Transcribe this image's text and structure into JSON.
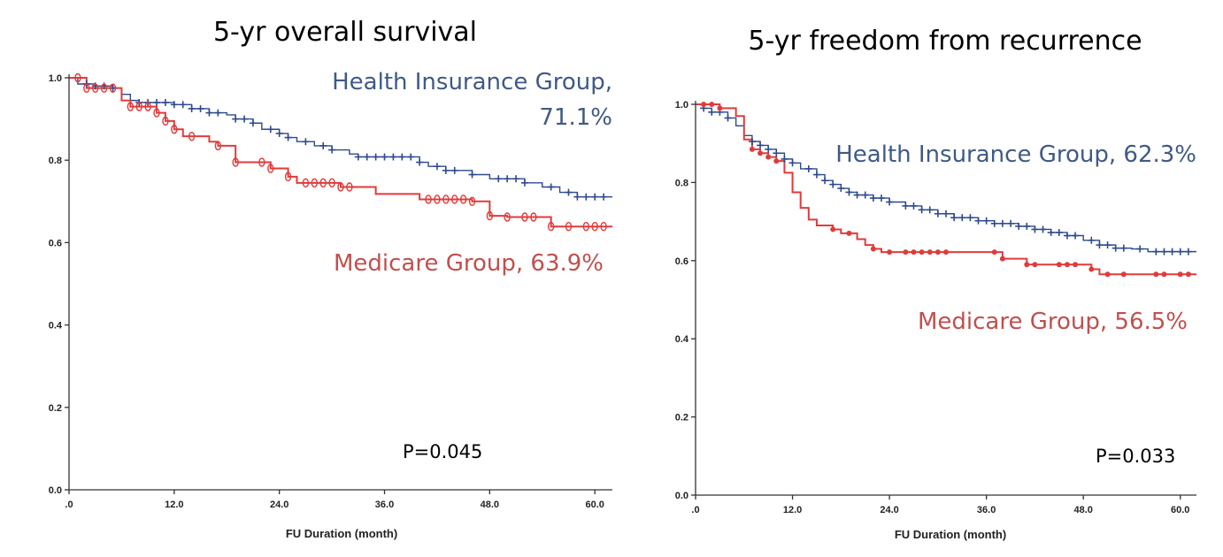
{
  "colors": {
    "health": "#2e4a8c",
    "medicare": "#e03b3b"
  },
  "chart_data": [
    {
      "type": "line",
      "title": "5-yr overall survival",
      "xlabel": "FU Duration (month)",
      "ylabel": "",
      "xlim": [
        0,
        62
      ],
      "ylim": [
        0,
        1.0
      ],
      "x_ticks": [
        0,
        12,
        24,
        36,
        48,
        60
      ],
      "x_tick_labels": [
        ".0",
        "12.0",
        "24.0",
        "36.0",
        "48.0",
        "60.0"
      ],
      "y_ticks": [
        0,
        0.2,
        0.4,
        0.6,
        0.8,
        1.0
      ],
      "y_tick_labels": [
        "0.0",
        "0.2",
        "0.4",
        "0.6",
        "0.8",
        "1.0"
      ],
      "series": [
        {
          "name": "Health Insurance Group, 71.1%",
          "label_lines": [
            "Health Insurance Group,",
            "71.1%"
          ],
          "steps": [
            [
              0,
              1.0
            ],
            [
              1,
              0.985
            ],
            [
              3,
              0.98
            ],
            [
              5,
              0.975
            ],
            [
              6,
              0.96
            ],
            [
              7,
              0.945
            ],
            [
              8,
              0.94
            ],
            [
              12,
              0.935
            ],
            [
              14,
              0.925
            ],
            [
              16,
              0.915
            ],
            [
              18,
              0.91
            ],
            [
              19,
              0.9
            ],
            [
              21,
              0.89
            ],
            [
              22,
              0.875
            ],
            [
              24,
              0.865
            ],
            [
              25,
              0.855
            ],
            [
              26,
              0.845
            ],
            [
              28,
              0.835
            ],
            [
              30,
              0.825
            ],
            [
              32,
              0.815
            ],
            [
              33,
              0.808
            ],
            [
              40,
              0.795
            ],
            [
              41,
              0.785
            ],
            [
              43,
              0.775
            ],
            [
              46,
              0.765
            ],
            [
              48,
              0.755
            ],
            [
              52,
              0.745
            ],
            [
              54,
              0.735
            ],
            [
              56,
              0.722
            ],
            [
              58,
              0.711
            ],
            [
              62,
              0.711
            ]
          ],
          "censors": [
            2,
            3,
            4,
            5,
            8,
            9,
            10,
            11,
            12,
            13,
            14,
            15,
            16,
            17,
            19,
            20,
            21,
            23,
            24,
            25,
            27,
            29,
            30,
            33,
            34,
            35,
            36,
            37,
            38,
            39,
            40,
            42,
            43,
            44,
            46,
            49,
            50,
            51,
            52,
            55,
            57,
            58,
            59,
            60,
            61
          ]
        },
        {
          "name": "Medicare Group, 63.9%",
          "label_lines": [
            "Medicare Group, 63.9%"
          ],
          "steps": [
            [
              0,
              1.0
            ],
            [
              2,
              0.975
            ],
            [
              6,
              0.945
            ],
            [
              7,
              0.93
            ],
            [
              10,
              0.915
            ],
            [
              11,
              0.895
            ],
            [
              12,
              0.875
            ],
            [
              13,
              0.858
            ],
            [
              16,
              0.845
            ],
            [
              17,
              0.835
            ],
            [
              19,
              0.795
            ],
            [
              23,
              0.78
            ],
            [
              25,
              0.76
            ],
            [
              26,
              0.745
            ],
            [
              31,
              0.735
            ],
            [
              35,
              0.718
            ],
            [
              40,
              0.705
            ],
            [
              46,
              0.7
            ],
            [
              48,
              0.665
            ],
            [
              50,
              0.662
            ],
            [
              54,
              0.662
            ],
            [
              55,
              0.639
            ],
            [
              62,
              0.639
            ]
          ],
          "censors": [
            1,
            2,
            3,
            4,
            5,
            7,
            8,
            9,
            10,
            11,
            12,
            14,
            17,
            19,
            22,
            23,
            25,
            27,
            28,
            29,
            30,
            31,
            32,
            41,
            42,
            43,
            44,
            45,
            46,
            48,
            50,
            52,
            53,
            55,
            57,
            59,
            60,
            61
          ]
        }
      ],
      "annotations": [
        "P=0.045"
      ]
    },
    {
      "type": "line",
      "title": "5-yr freedom from recurrence",
      "xlabel": "FU Duration (month)",
      "ylabel": "",
      "xlim": [
        0,
        62
      ],
      "ylim": [
        0,
        1.0
      ],
      "x_ticks": [
        0,
        12,
        24,
        36,
        48,
        60
      ],
      "x_tick_labels": [
        ".0",
        "12.0",
        "24.0",
        "36.0",
        "48.0",
        "60.0"
      ],
      "y_ticks": [
        0,
        0.2,
        0.4,
        0.6,
        0.8,
        1.0
      ],
      "y_tick_labels": [
        "0.0",
        "0.2",
        "0.4",
        "0.6",
        "0.8",
        "1.0"
      ],
      "series": [
        {
          "name": "Health Insurance Group, 62.3%",
          "label_lines": [
            "Health Insurance Group, 62.3%"
          ],
          "steps": [
            [
              0,
              1.0
            ],
            [
              1,
              0.99
            ],
            [
              2,
              0.98
            ],
            [
              4,
              0.965
            ],
            [
              5,
              0.945
            ],
            [
              6,
              0.92
            ],
            [
              7,
              0.905
            ],
            [
              8,
              0.895
            ],
            [
              9,
              0.885
            ],
            [
              10,
              0.875
            ],
            [
              11,
              0.86
            ],
            [
              12,
              0.85
            ],
            [
              13,
              0.835
            ],
            [
              15,
              0.82
            ],
            [
              16,
              0.805
            ],
            [
              17,
              0.795
            ],
            [
              18,
              0.785
            ],
            [
              19,
              0.775
            ],
            [
              20,
              0.768
            ],
            [
              22,
              0.76
            ],
            [
              24,
              0.75
            ],
            [
              26,
              0.74
            ],
            [
              28,
              0.73
            ],
            [
              30,
              0.72
            ],
            [
              32,
              0.71
            ],
            [
              35,
              0.702
            ],
            [
              37,
              0.695
            ],
            [
              40,
              0.688
            ],
            [
              42,
              0.68
            ],
            [
              44,
              0.672
            ],
            [
              46,
              0.664
            ],
            [
              48,
              0.652
            ],
            [
              50,
              0.64
            ],
            [
              52,
              0.632
            ],
            [
              54,
              0.63
            ],
            [
              56,
              0.623
            ],
            [
              62,
              0.623
            ]
          ],
          "censors": [
            1,
            2,
            3,
            4,
            7,
            8,
            9,
            10,
            11,
            12,
            14,
            15,
            16,
            17,
            18,
            19,
            20,
            21,
            22,
            23,
            24,
            26,
            27,
            28,
            29,
            30,
            31,
            32,
            33,
            34,
            35,
            36,
            37,
            38,
            39,
            40,
            41,
            42,
            43,
            44,
            45,
            46,
            47,
            49,
            50,
            51,
            52,
            53,
            55,
            57,
            58,
            59,
            60,
            61
          ]
        },
        {
          "name": "Medicare Group, 56.5%",
          "label_lines": [
            "Medicare Group, 56.5%"
          ],
          "steps": [
            [
              0,
              1.0
            ],
            [
              3,
              0.99
            ],
            [
              5,
              0.97
            ],
            [
              6,
              0.91
            ],
            [
              7,
              0.885
            ],
            [
              8,
              0.875
            ],
            [
              9,
              0.865
            ],
            [
              10,
              0.855
            ],
            [
              11,
              0.825
            ],
            [
              12,
              0.775
            ],
            [
              13,
              0.735
            ],
            [
              14,
              0.705
            ],
            [
              15,
              0.69
            ],
            [
              17,
              0.68
            ],
            [
              18,
              0.67
            ],
            [
              20,
              0.655
            ],
            [
              21,
              0.64
            ],
            [
              22,
              0.63
            ],
            [
              23,
              0.622
            ],
            [
              38,
              0.605
            ],
            [
              41,
              0.59
            ],
            [
              49,
              0.578
            ],
            [
              50,
              0.565
            ],
            [
              62,
              0.565
            ]
          ],
          "censors": [
            1,
            2,
            3,
            7,
            8,
            9,
            10,
            17,
            19,
            22,
            24,
            26,
            27,
            28,
            29,
            30,
            31,
            37,
            38,
            41,
            42,
            45,
            46,
            47,
            49,
            51,
            53,
            57,
            58,
            60,
            61
          ]
        }
      ],
      "annotations": [
        "P=0.033"
      ]
    }
  ]
}
